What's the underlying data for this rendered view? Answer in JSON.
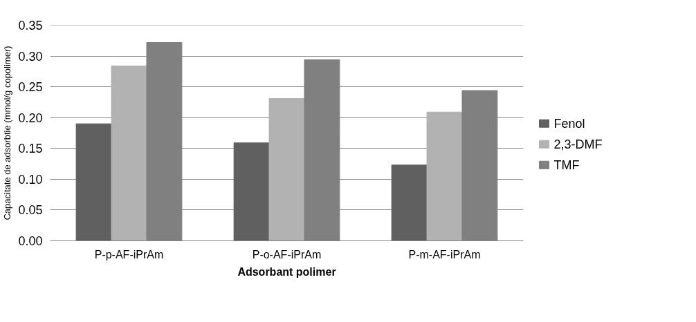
{
  "chart_data": {
    "type": "bar",
    "xlabel": "Adsorbant polimer",
    "ylabel": "Capacitate de adsorbtie (mmol/g copolimer)",
    "categories": [
      "P-p-AF-iPrAm",
      "P-o-AF-iPrAm",
      "P-m-AF-iPrAm"
    ],
    "series": [
      {
        "name": "Fenol",
        "color": "#606060",
        "values": [
          0.19,
          0.159,
          0.123
        ]
      },
      {
        "name": "2,3-DMF",
        "color": "#b2b2b2",
        "values": [
          0.284,
          0.231,
          0.209
        ]
      },
      {
        "name": "TMF",
        "color": "#808080",
        "values": [
          0.322,
          0.294,
          0.244
        ]
      }
    ],
    "ylim": [
      0,
      0.35
    ],
    "yticks": [
      {
        "value": 0,
        "label": "0.00"
      },
      0.05,
      {
        "value": 0.1,
        "label": "0.10"
      },
      0.15,
      {
        "value": 0.2,
        "label": "0.20"
      },
      0.25,
      {
        "value": 0.3,
        "label": "0.30"
      },
      0.35
    ],
    "grid": "y",
    "legend": "right"
  }
}
